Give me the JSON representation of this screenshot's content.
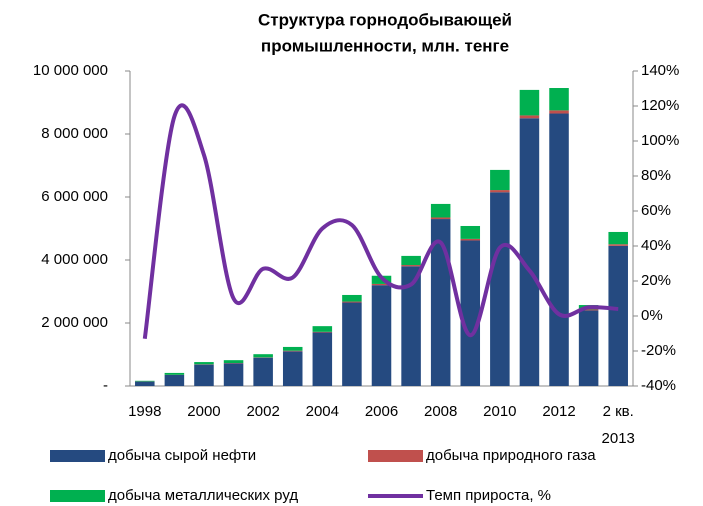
{
  "chart_data": {
    "type": "bar-line",
    "title": [
      "Структура горнодобывающей",
      "промышленности, млн. тенге"
    ],
    "categories": [
      "1998",
      null,
      "2000",
      null,
      "2002",
      null,
      "2004",
      null,
      "2006",
      null,
      "2008",
      null,
      "2010",
      null,
      "2012",
      null,
      "2 кв. 2013"
    ],
    "series": [
      {
        "name": "добыча сырой нефти",
        "color": "#254a80",
        "kind": "bar",
        "values": [
          140000,
          350000,
          680000,
          720000,
          900000,
          1100000,
          1700000,
          2650000,
          3200000,
          3800000,
          5300000,
          4620000,
          6150000,
          8500000,
          8650000,
          2400000,
          4450000
        ]
      },
      {
        "name": "добыча природного газа",
        "color": "#c0504d",
        "kind": "bar",
        "values": [
          5000,
          5000,
          10000,
          10000,
          10000,
          20000,
          20000,
          30000,
          40000,
          40000,
          50000,
          50000,
          70000,
          90000,
          100000,
          30000,
          50000
        ]
      },
      {
        "name": "добыча металлических руд",
        "color": "#00b050",
        "kind": "bar",
        "values": [
          20000,
          60000,
          70000,
          90000,
          100000,
          120000,
          180000,
          210000,
          260000,
          290000,
          430000,
          410000,
          640000,
          810000,
          710000,
          140000,
          390000
        ]
      },
      {
        "name": "Темп прироста, %",
        "color": "#7030a0",
        "kind": "line",
        "axis": "y2",
        "values": [
          -13,
          114,
          92,
          10,
          27,
          22,
          50,
          52,
          22,
          18,
          42,
          -11,
          39,
          26,
          1,
          5,
          4
        ]
      }
    ],
    "ylim": [
      0,
      10000000
    ],
    "yticks": [
      {
        "value": 0,
        "label": "-"
      },
      {
        "value": 2000000,
        "label": "2 000 000"
      },
      {
        "value": 4000000,
        "label": "4 000 000"
      },
      {
        "value": 6000000,
        "label": "6 000 000"
      },
      {
        "value": 8000000,
        "label": "8 000 000"
      },
      {
        "value": 10000000,
        "label": "10 000 000"
      }
    ],
    "y2lim": [
      -40,
      140
    ],
    "y2ticks": [
      {
        "value": -40,
        "label": "-40%"
      },
      {
        "value": -20,
        "label": "-20%"
      },
      {
        "value": 0,
        "label": "0%"
      },
      {
        "value": 20,
        "label": "20%"
      },
      {
        "value": 40,
        "label": "40%"
      },
      {
        "value": 60,
        "label": "60%"
      },
      {
        "value": 80,
        "label": "80%"
      },
      {
        "value": 100,
        "label": "100%"
      },
      {
        "value": 120,
        "label": "120%"
      },
      {
        "value": 140,
        "label": "140%"
      }
    ],
    "grid": false
  }
}
